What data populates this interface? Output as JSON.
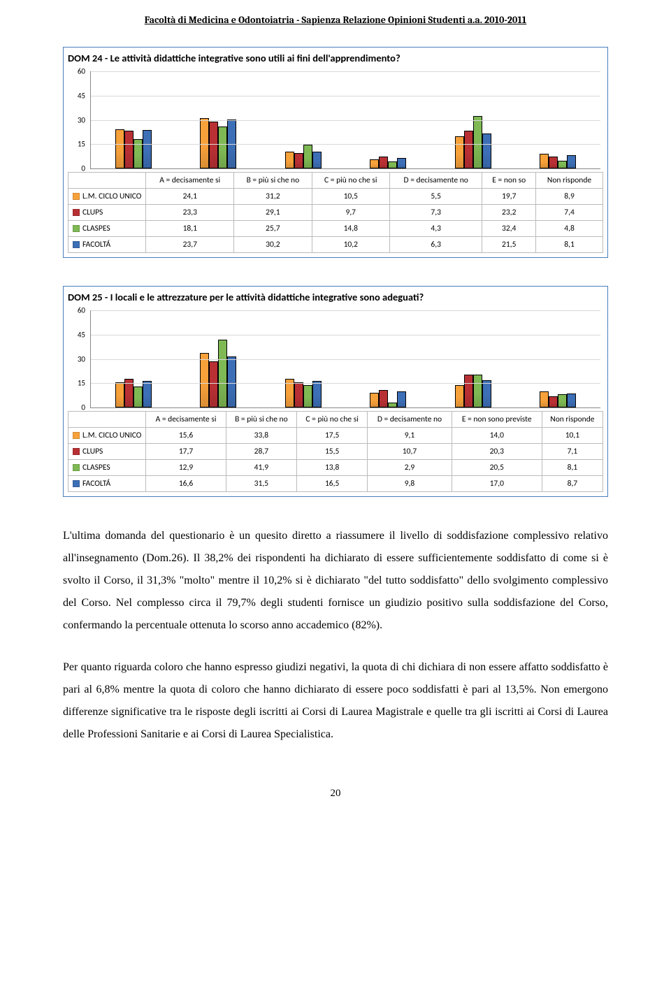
{
  "header": "Facoltà di Medicina e Odontoiatria - Sapienza Relazione Opinioni Studenti a.a. 2010-2011",
  "series": [
    {
      "key": "lm",
      "label": "L.M. CICLO UNICO",
      "color": "#f7a13b"
    },
    {
      "key": "clups",
      "label": "CLUPS",
      "color": "#b83034"
    },
    {
      "key": "claspes",
      "label": "CLASPES",
      "color": "#7fb954"
    },
    {
      "key": "fac",
      "label": "FACOLTÁ",
      "color": "#3d6fb6"
    }
  ],
  "chart1": {
    "title": "DOM 24 - Le attività didattiche integrative sono utili ai fini dell'apprendimento?",
    "ylim": 60,
    "ytick": 15,
    "categories": [
      "A = decisamente si",
      "B = più si che no",
      "C = più no che si",
      "D = decisamente no",
      "E = non so",
      "Non risponde"
    ],
    "rows": {
      "lm": [
        "24,1",
        "31,2",
        "10,5",
        "5,5",
        "19,7",
        "8,9"
      ],
      "clups": [
        "23,3",
        "29,1",
        "9,7",
        "7,3",
        "23,2",
        "7,4"
      ],
      "claspes": [
        "18,1",
        "25,7",
        "14,8",
        "4,3",
        "32,4",
        "4,8"
      ],
      "fac": [
        "23,7",
        "30,2",
        "10,2",
        "6,3",
        "21,5",
        "8,1"
      ]
    }
  },
  "chart2": {
    "title": "DOM 25 - I locali e le attrezzature per le attività didattiche integrative sono adeguati?",
    "ylim": 60,
    "ytick": 15,
    "categories": [
      "A = decisamente si",
      "B = più si che no",
      "C = più no che si",
      "D = decisamente no",
      "E = non sono previste",
      "Non risponde"
    ],
    "rows": {
      "lm": [
        "15,6",
        "33,8",
        "17,5",
        "9,1",
        "14,0",
        "10,1"
      ],
      "clups": [
        "17,7",
        "28,7",
        "15,5",
        "10,7",
        "20,3",
        "7,1"
      ],
      "claspes": [
        "12,9",
        "41,9",
        "13,8",
        "2,9",
        "20,5",
        "8,1"
      ],
      "fac": [
        "16,6",
        "31,5",
        "16,5",
        "9,8",
        "17,0",
        "8,7"
      ]
    }
  },
  "body_p1": "L'ultima domanda del questionario è un quesito diretto a riassumere il livello di soddisfazione complessivo relativo all'insegnamento (Dom.26). Il 38,2% dei rispondenti ha dichiarato di essere sufficientemente soddisfatto di come si è svolto il Corso, il 31,3% \"molto\" mentre il 10,2% si è dichiarato \"del tutto soddisfatto\" dello svolgimento complessivo del Corso. Nel complesso circa il 79,7% degli studenti fornisce un giudizio positivo sulla soddisfazione del Corso, confermando la percentuale ottenuta lo scorso anno accademico (82%).",
  "body_p2": "Per quanto riguarda coloro che hanno espresso giudizi negativi, la quota di chi dichiara di non essere affatto soddisfatto è pari al 6,8% mentre la quota di coloro che hanno dichiarato di essere poco soddisfatti è pari al 13,5%. Non emergono differenze significative tra le risposte degli iscritti ai Corsi di Laurea Magistrale e quelle tra gli iscritti ai Corsi di Laurea delle Professioni Sanitarie e ai Corsi di Laurea Specialistica.",
  "page_number": "20"
}
